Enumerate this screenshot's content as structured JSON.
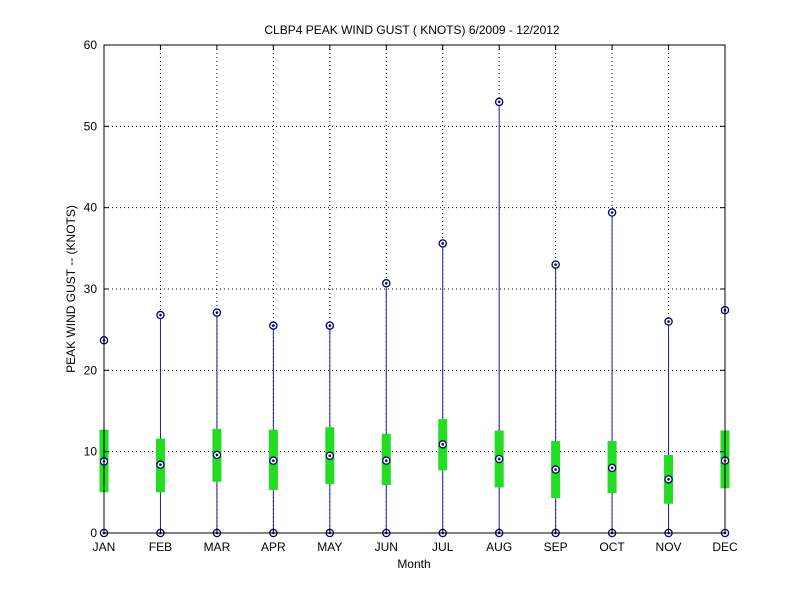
{
  "chart_data": {
    "type": "box",
    "title": "CLBP4  PEAK WIND GUST ( KNOTS) 6/2009 - 12/2012",
    "xlabel": "Month",
    "ylabel": "PEAK WIND GUST -- (KNOTS)",
    "ylim": [
      0,
      60
    ],
    "yticks": [
      0,
      10,
      20,
      30,
      40,
      50,
      60
    ],
    "grid": true,
    "categories": [
      "JAN",
      "FEB",
      "MAR",
      "APR",
      "MAY",
      "JUN",
      "JUL",
      "AUG",
      "SEP",
      "OCT",
      "NOV",
      "DEC"
    ],
    "series": [
      {
        "values": [
          {
            "min": 0,
            "q1": 5.0,
            "median": 8.8,
            "q3": 12.7,
            "max": 23.7
          },
          {
            "min": 0,
            "q1": 5.0,
            "median": 8.4,
            "q3": 11.6,
            "max": 26.8
          },
          {
            "min": 0,
            "q1": 6.3,
            "median": 9.6,
            "q3": 12.8,
            "max": 27.1
          },
          {
            "min": 0,
            "q1": 5.3,
            "median": 8.9,
            "q3": 12.7,
            "max": 25.5
          },
          {
            "min": 0,
            "q1": 6.0,
            "median": 9.5,
            "q3": 13.0,
            "max": 25.5
          },
          {
            "min": 0,
            "q1": 5.9,
            "median": 8.9,
            "q3": 12.2,
            "max": 30.7
          },
          {
            "min": 0,
            "q1": 7.7,
            "median": 10.9,
            "q3": 14.0,
            "max": 35.6
          },
          {
            "min": 0,
            "q1": 5.6,
            "median": 9.1,
            "q3": 12.6,
            "max": 53.0
          },
          {
            "min": 0,
            "q1": 4.3,
            "median": 7.8,
            "q3": 11.3,
            "max": 33.0
          },
          {
            "min": 0,
            "q1": 4.9,
            "median": 8.0,
            "q3": 11.3,
            "max": 39.4
          },
          {
            "min": 0,
            "q1": 3.6,
            "median": 6.6,
            "q3": 9.6,
            "max": 26.0
          },
          {
            "min": 0,
            "q1": 5.5,
            "median": 8.9,
            "q3": 12.6,
            "max": 27.4
          }
        ]
      }
    ],
    "colors": {
      "whisker": "#1f1fa8",
      "box": "#22dd22",
      "marker": "#00006b",
      "grid": "#000000"
    }
  }
}
